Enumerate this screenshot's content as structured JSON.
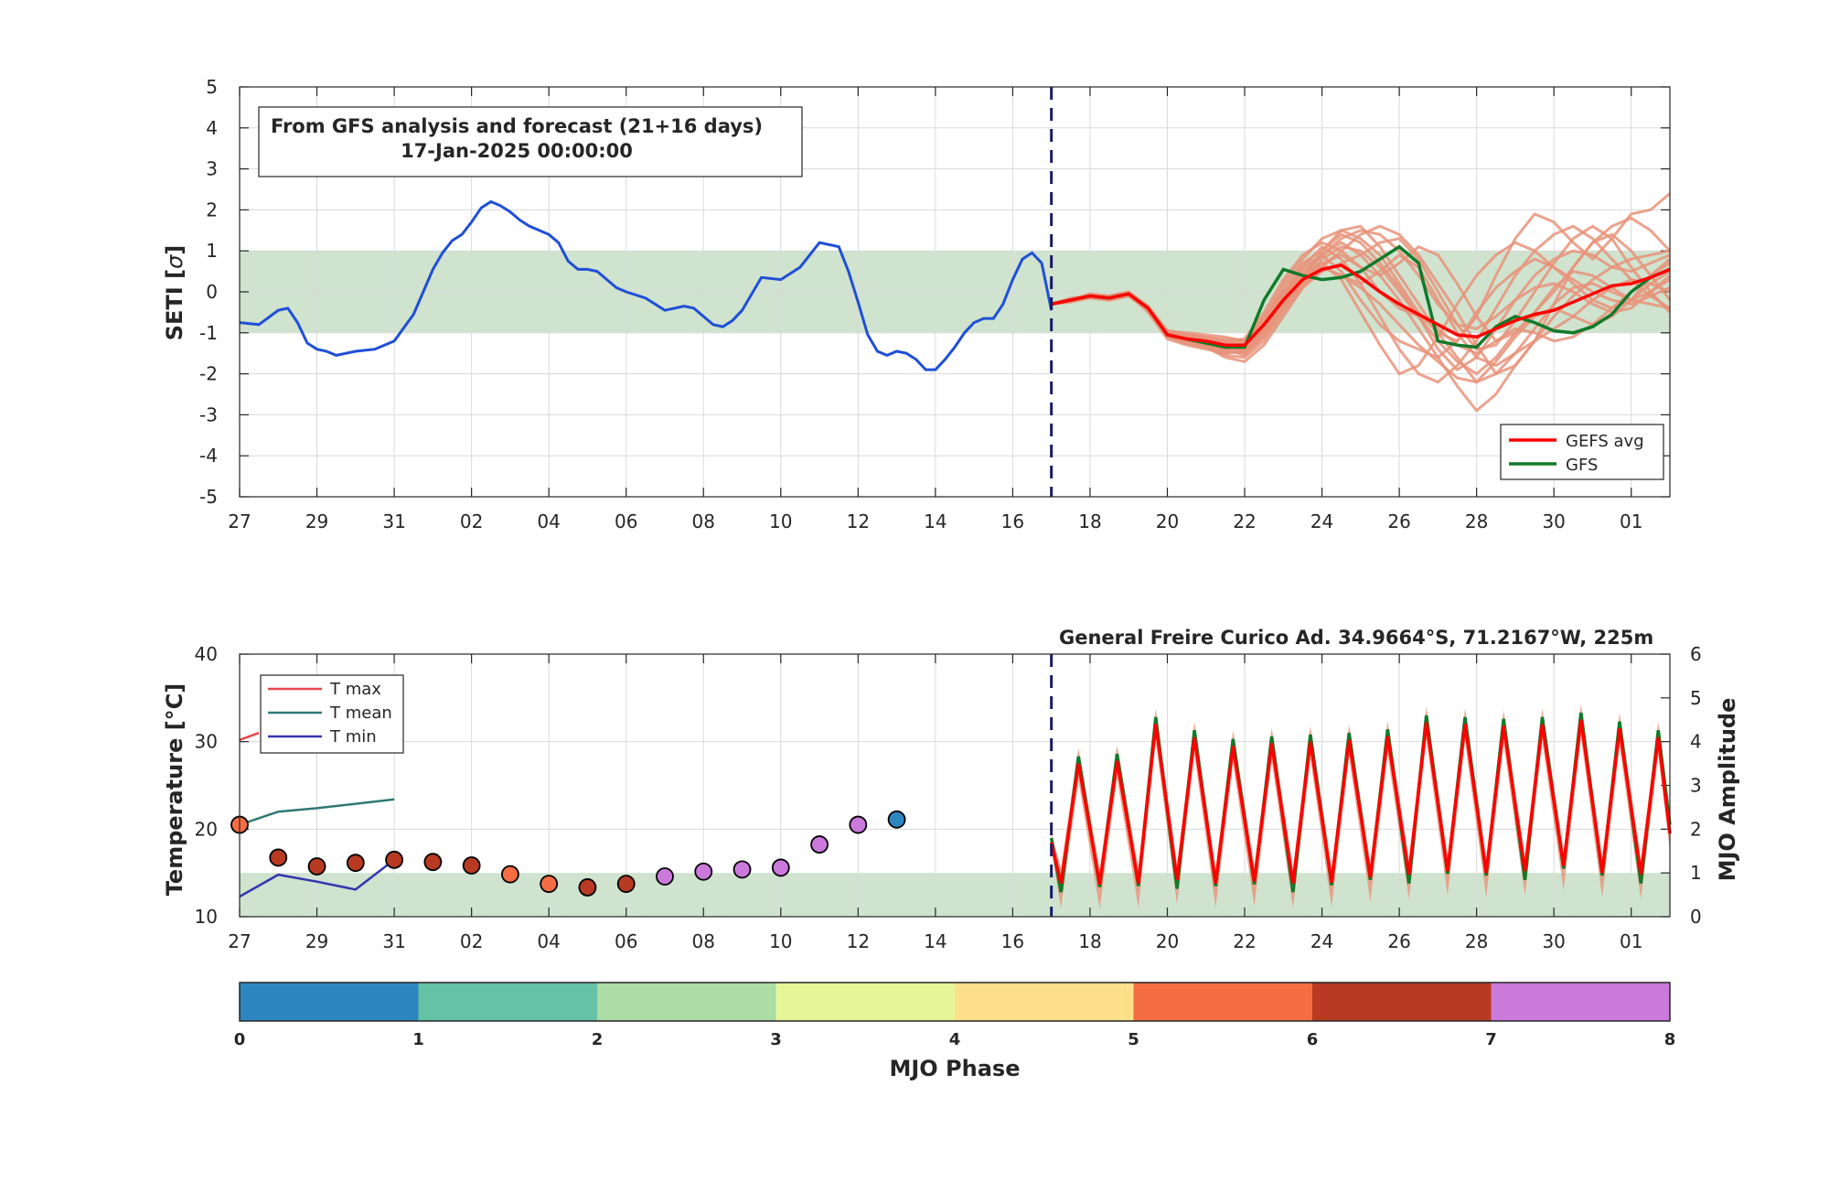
{
  "colors": {
    "analysis": "#1f4fd6",
    "gefs_avg": "#ff0000",
    "gfs": "#117a2a",
    "ensemble": "#e8937a",
    "band": "#cfe3cf",
    "t_max": "#e8474a",
    "t_mean": "#2f7873",
    "t_min": "#3436b0",
    "forecast_line": "#1a1a66"
  },
  "chart_data": [
    {
      "type": "line",
      "info_box": [
        "From GFS analysis and forecast (21+16 days)",
        "17-Jan-2025 00:00:00"
      ],
      "ylabel": "SETI [σ]",
      "ylabel_main": "SETI [",
      "ylabel_sym": "σ",
      "ylabel_end": "]",
      "xlim": [
        0,
        37
      ],
      "ylim": [
        -5,
        5
      ],
      "yticks": [
        "5",
        "4",
        "3",
        "2",
        "1",
        "0",
        "-1",
        "-2",
        "-3",
        "-4",
        "-5"
      ],
      "xticks": [
        "27",
        "29",
        "31",
        "02",
        "04",
        "06",
        "08",
        "10",
        "12",
        "14",
        "16",
        "18",
        "20",
        "22",
        "24",
        "26",
        "28",
        "30",
        "01"
      ],
      "band": [
        -1,
        1
      ],
      "forecast_start": 21,
      "legend": {
        "position": "bottom-right",
        "entries": [
          "GEFS avg",
          "GFS"
        ]
      },
      "series": [
        {
          "name": "analysis",
          "x": [
            0,
            0.5,
            1,
            1.25,
            1.5,
            1.75,
            2,
            2.25,
            2.5,
            2.75,
            3,
            3.5,
            4,
            4.5,
            5,
            5.25,
            5.5,
            5.75,
            6,
            6.25,
            6.5,
            6.75,
            7,
            7.25,
            7.5,
            7.75,
            8,
            8.25,
            8.5,
            8.75,
            9,
            9.25,
            9.5,
            9.75,
            10,
            10.5,
            11,
            11.5,
            11.75,
            12,
            12.25,
            12.5,
            12.75,
            13,
            13.5,
            14,
            14.5,
            15,
            15.5,
            15.75,
            16,
            16.25,
            16.5,
            16.75,
            17,
            17.25,
            17.5,
            17.75,
            18,
            18.25,
            18.5,
            18.75,
            19,
            19.25,
            19.5,
            19.75,
            20,
            20.25,
            20.5,
            20.75,
            21
          ],
          "y": [
            -0.75,
            -0.8,
            -0.45,
            -0.4,
            -0.75,
            -1.25,
            -1.4,
            -1.45,
            -1.55,
            -1.5,
            -1.45,
            -1.4,
            -1.2,
            -0.55,
            0.55,
            0.95,
            1.25,
            1.4,
            1.7,
            2.05,
            2.2,
            2.1,
            1.95,
            1.75,
            1.6,
            1.5,
            1.4,
            1.2,
            0.75,
            0.55,
            0.55,
            0.5,
            0.3,
            0.1,
            0.0,
            -0.15,
            -0.45,
            -0.35,
            -0.4,
            -0.6,
            -0.8,
            -0.85,
            -0.7,
            -0.45,
            0.35,
            0.3,
            0.6,
            1.2,
            1.1,
            0.5,
            -0.25,
            -1.05,
            -1.45,
            -1.55,
            -1.45,
            -1.5,
            -1.65,
            -1.9,
            -1.9,
            -1.65,
            -1.35,
            -1.0,
            -0.75,
            -0.65,
            -0.65,
            -0.3,
            0.3,
            0.8,
            0.95,
            0.7,
            -0.45
          ]
        },
        {
          "name": "GEFS avg",
          "x": [
            21,
            21.5,
            22,
            22.5,
            23,
            23.5,
            24,
            24.5,
            25,
            25.5,
            26,
            26.5,
            27,
            27.5,
            28,
            28.5,
            29,
            29.5,
            30,
            30.5,
            31,
            31.5,
            32,
            32.5,
            33,
            33.5,
            34,
            34.5,
            35,
            35.5,
            36,
            36.5,
            37
          ],
          "y": [
            -0.3,
            -0.2,
            -0.1,
            -0.15,
            -0.05,
            -0.4,
            -1.05,
            -1.15,
            -1.2,
            -1.3,
            -1.3,
            -0.8,
            -0.2,
            0.3,
            0.55,
            0.65,
            0.35,
            0.0,
            -0.3,
            -0.55,
            -0.8,
            -1.05,
            -1.1,
            -0.9,
            -0.7,
            -0.55,
            -0.45,
            -0.25,
            -0.05,
            0.15,
            0.2,
            0.35,
            0.55
          ]
        },
        {
          "name": "GFS",
          "x": [
            21,
            21.5,
            22,
            22.5,
            23,
            23.5,
            24,
            24.5,
            25,
            25.5,
            26,
            26.5,
            27,
            27.5,
            28,
            28.5,
            29,
            29.5,
            30,
            30.5,
            31,
            31.5,
            32,
            32.5,
            33,
            33.5,
            34,
            34.5,
            35,
            35.5,
            36,
            36.5,
            37
          ],
          "y": [
            -0.3,
            -0.2,
            -0.1,
            -0.15,
            -0.05,
            -0.4,
            -1.05,
            -1.15,
            -1.25,
            -1.35,
            -1.35,
            -0.2,
            0.55,
            0.4,
            0.3,
            0.35,
            0.5,
            0.8,
            1.1,
            0.7,
            -1.2,
            -1.3,
            -1.35,
            -0.85,
            -0.6,
            -0.75,
            -0.95,
            -1.0,
            -0.85,
            -0.55,
            0.0,
            0.35,
            0.55
          ]
        }
      ],
      "ensemble_members": [
        [
          -0.3,
          -0.2,
          -0.1,
          -0.15,
          -0.05,
          -0.4,
          -1.05,
          -1.2,
          -1.3,
          -1.5,
          -1.45,
          -0.9,
          -0.1,
          0.5,
          0.9,
          1.2,
          0.9,
          0.4,
          -0.2,
          -0.9,
          -1.6,
          -2.3,
          -2.9,
          -2.5,
          -1.8,
          -1.2,
          -0.6,
          -0.1,
          0.3,
          0.6,
          0.8,
          0.9,
          1.0
        ],
        [
          -0.3,
          -0.25,
          -0.15,
          -0.2,
          -0.1,
          -0.45,
          -1.0,
          -1.1,
          -1.15,
          -1.2,
          -1.25,
          -0.6,
          0.2,
          0.8,
          1.3,
          1.5,
          1.3,
          0.9,
          0.2,
          -0.5,
          -1.0,
          -1.2,
          -0.6,
          0.4,
          1.3,
          1.9,
          1.7,
          1.2,
          0.8,
          1.3,
          1.9,
          2.0,
          2.4
        ],
        [
          -0.3,
          -0.2,
          -0.05,
          -0.1,
          0.0,
          -0.35,
          -1.1,
          -1.25,
          -1.35,
          -1.6,
          -1.7,
          -1.3,
          -0.6,
          0.1,
          0.6,
          1.0,
          1.4,
          1.6,
          1.4,
          0.9,
          0.2,
          -0.5,
          -1.3,
          -2.0,
          -1.8,
          -1.2,
          -0.3,
          0.6,
          1.2,
          1.4,
          1.0,
          0.4,
          -0.2
        ],
        [
          -0.3,
          -0.15,
          -0.1,
          -0.2,
          -0.1,
          -0.4,
          -0.95,
          -1.0,
          -1.05,
          -1.1,
          -1.2,
          -0.7,
          0.0,
          0.4,
          0.7,
          0.3,
          -0.5,
          -1.3,
          -2.0,
          -1.8,
          -1.1,
          -0.3,
          0.4,
          0.9,
          1.2,
          1.0,
          0.6,
          0.3,
          0.0,
          -0.2,
          -0.3,
          -0.1,
          0.1
        ],
        [
          -0.3,
          -0.2,
          -0.1,
          -0.1,
          -0.05,
          -0.5,
          -1.15,
          -1.3,
          -1.4,
          -1.5,
          -1.4,
          -0.8,
          -0.3,
          0.3,
          1.0,
          1.5,
          1.6,
          1.1,
          0.4,
          -0.3,
          -1.0,
          -1.6,
          -2.2,
          -2.0,
          -1.5,
          -1.2,
          -0.9,
          -0.6,
          -0.2,
          0.1,
          0.3,
          0.2,
          0.0
        ],
        [
          -0.3,
          -0.2,
          -0.15,
          -0.15,
          -0.05,
          -0.35,
          -1.0,
          -1.15,
          -1.2,
          -1.35,
          -1.4,
          -0.9,
          -0.1,
          0.6,
          1.1,
          0.8,
          0.2,
          -0.6,
          -1.4,
          -2.0,
          -2.2,
          -1.8,
          -1.2,
          -0.4,
          0.4,
          1.0,
          1.4,
          1.6,
          1.3,
          0.8,
          0.3,
          -0.1,
          -0.4
        ],
        [
          -0.3,
          -0.2,
          -0.1,
          -0.15,
          -0.1,
          -0.45,
          -1.1,
          -1.2,
          -1.25,
          -1.4,
          -1.55,
          -1.1,
          -0.4,
          0.2,
          0.7,
          0.9,
          0.6,
          0.0,
          -0.4,
          -0.6,
          -0.9,
          -1.3,
          -1.5,
          -1.2,
          -0.9,
          -1.0,
          -1.2,
          -1.1,
          -0.8,
          -0.4,
          0.0,
          0.4,
          0.7
        ],
        [
          -0.3,
          -0.25,
          -0.1,
          -0.15,
          -0.05,
          -0.4,
          -1.0,
          -1.05,
          -1.1,
          -1.2,
          -1.15,
          -0.5,
          0.3,
          0.9,
          1.2,
          1.0,
          0.6,
          0.4,
          0.7,
          1.1,
          0.9,
          0.2,
          -0.6,
          -1.2,
          -1.0,
          -0.5,
          0.1,
          0.5,
          0.4,
          0.1,
          -0.2,
          -0.3,
          -0.4
        ],
        [
          -0.3,
          -0.2,
          -0.1,
          -0.1,
          0.0,
          -0.4,
          -1.05,
          -1.2,
          -1.3,
          -1.45,
          -1.5,
          -1.0,
          -0.3,
          0.3,
          0.8,
          1.1,
          1.0,
          0.6,
          0.0,
          -0.6,
          -1.2,
          -1.7,
          -2.0,
          -1.6,
          -1.0,
          -0.5,
          0.0,
          0.6,
          1.2,
          1.6,
          1.8,
          1.5,
          1.0
        ],
        [
          -0.3,
          -0.2,
          -0.15,
          -0.2,
          -0.1,
          -0.45,
          -1.05,
          -1.15,
          -1.25,
          -1.35,
          -1.35,
          -0.8,
          -0.1,
          0.4,
          0.6,
          0.4,
          0.2,
          0.5,
          0.9,
          0.6,
          -0.2,
          -1.0,
          -1.6,
          -1.8,
          -1.5,
          -0.9,
          -0.3,
          0.1,
          0.2,
          0.0,
          -0.2,
          0.0,
          0.3
        ],
        [
          -0.3,
          -0.2,
          -0.05,
          -0.15,
          -0.05,
          -0.4,
          -1.1,
          -1.25,
          -1.35,
          -1.55,
          -1.6,
          -1.2,
          -0.5,
          0.1,
          0.5,
          0.7,
          0.9,
          1.2,
          1.3,
          0.8,
          0.0,
          -0.8,
          -1.4,
          -1.3,
          -0.7,
          0.0,
          0.7,
          1.3,
          1.6,
          1.3,
          0.6,
          0.0,
          -0.5
        ],
        [
          -0.3,
          -0.2,
          -0.1,
          -0.15,
          -0.05,
          -0.4,
          -1.0,
          -1.1,
          -1.15,
          -1.25,
          -1.3,
          -0.7,
          0.1,
          0.7,
          1.0,
          1.4,
          1.2,
          0.7,
          0.1,
          -0.6,
          -1.4,
          -1.9,
          -1.6,
          -0.9,
          -0.2,
          0.4,
          0.8,
          1.0,
          0.9,
          0.6,
          0.5,
          0.7,
          0.9
        ],
        [
          -0.3,
          -0.2,
          -0.1,
          -0.2,
          -0.1,
          -0.45,
          -1.1,
          -1.2,
          -1.3,
          -1.4,
          -1.45,
          -1.0,
          -0.2,
          0.4,
          0.9,
          0.5,
          -0.2,
          -0.8,
          -1.2,
          -1.4,
          -1.6,
          -1.2,
          -0.5,
          0.1,
          0.5,
          0.8,
          0.6,
          0.2,
          -0.2,
          -0.4,
          -0.2,
          0.2,
          0.5
        ],
        [
          -0.3,
          -0.2,
          -0.1,
          -0.1,
          -0.05,
          -0.35,
          -0.95,
          -1.05,
          -1.1,
          -1.15,
          -1.2,
          -0.6,
          0.0,
          0.6,
          0.9,
          1.3,
          1.5,
          1.4,
          1.0,
          0.4,
          -0.3,
          -0.8,
          -0.9,
          -0.6,
          -0.2,
          0.1,
          0.2,
          0.0,
          -0.3,
          -0.5,
          -0.4,
          0.0,
          0.4
        ],
        [
          -0.3,
          -0.2,
          -0.1,
          -0.15,
          -0.05,
          -0.45,
          -1.05,
          -1.2,
          -1.3,
          -1.45,
          -1.5,
          -1.1,
          -0.4,
          0.2,
          0.6,
          0.4,
          0.1,
          -0.3,
          -0.8,
          -1.3,
          -1.7,
          -2.1,
          -2.2,
          -1.7,
          -1.1,
          -0.6,
          -0.4,
          -0.6,
          -0.8,
          -0.6,
          -0.2,
          0.4,
          0.8
        ]
      ]
    },
    {
      "type": "line",
      "title": "General Freire Curico Ad. 34.9664°S, 71.2167°W, 225m",
      "ylabel": "Temperature [°C]",
      "ylabel_right": "MJO Amplitude",
      "xlim": [
        0,
        37
      ],
      "ylim": [
        10,
        40
      ],
      "ylim_right": [
        0,
        6
      ],
      "yticks": [
        "40",
        "30",
        "20",
        "10"
      ],
      "yticks_right": [
        "6",
        "5",
        "4",
        "3",
        "2",
        "1",
        "0"
      ],
      "xticks": [
        "27",
        "29",
        "31",
        "02",
        "04",
        "06",
        "08",
        "10",
        "12",
        "14",
        "16",
        "18",
        "20",
        "22",
        "24",
        "26",
        "28",
        "30",
        "01"
      ],
      "band_right": [
        0,
        1
      ],
      "forecast_start": 21,
      "legend": {
        "position": "top-left",
        "entries": [
          "T max",
          "T mean",
          "T min"
        ]
      },
      "series": [
        {
          "name": "T max",
          "x": [
            0,
            0.5
          ],
          "y": [
            30.2,
            31.0
          ]
        },
        {
          "name": "T mean",
          "x": [
            0,
            1,
            2,
            3,
            4
          ],
          "y": [
            20.5,
            22.0,
            22.4,
            22.9,
            23.4
          ]
        },
        {
          "name": "T min",
          "x": [
            0,
            1,
            2,
            3,
            4
          ],
          "y": [
            12.3,
            14.8,
            14.0,
            13.1,
            16.5
          ]
        }
      ],
      "forecast_tmax": [
        28.5,
        28.8,
        33.0,
        31.5,
        30.5,
        30.8,
        31.0,
        31.2,
        31.6,
        33.2,
        33.0,
        32.8,
        33.0,
        33.5,
        32.5,
        31.5,
        30.5
      ],
      "forecast_tmin": [
        13.8,
        13.7,
        13.8,
        14.2,
        13.8,
        14.0,
        13.8,
        13.9,
        14.5,
        14.8,
        15.2,
        15.0,
        15.2,
        15.8,
        15.0,
        14.8,
        14.5
      ],
      "mjo": {
        "x": [
          0,
          1,
          2,
          3,
          4,
          5,
          6,
          7,
          8,
          9,
          10,
          11,
          12,
          13,
          14,
          15,
          16,
          17
        ],
        "amplitude": [
          2.1,
          1.35,
          1.15,
          1.23,
          1.3,
          1.25,
          1.17,
          0.97,
          0.75,
          0.67,
          0.75,
          0.92,
          1.03,
          1.08,
          1.12,
          1.65,
          2.1,
          2.22
        ],
        "phase": [
          6,
          7,
          7,
          7,
          7,
          7,
          7,
          6,
          6,
          7,
          7,
          8,
          8,
          8,
          8,
          8,
          8,
          1
        ]
      }
    },
    {
      "type": "colorbar",
      "label": "MJO Phase",
      "ticks": [
        "0",
        "1",
        "2",
        "3",
        "4",
        "5",
        "6",
        "7",
        "8"
      ],
      "colors": [
        "#2e86c1",
        "#66c2a5",
        "#abdda4",
        "#e6f598",
        "#fee08b",
        "#f46d43",
        "#b83a22",
        "#cc79dc"
      ]
    }
  ]
}
